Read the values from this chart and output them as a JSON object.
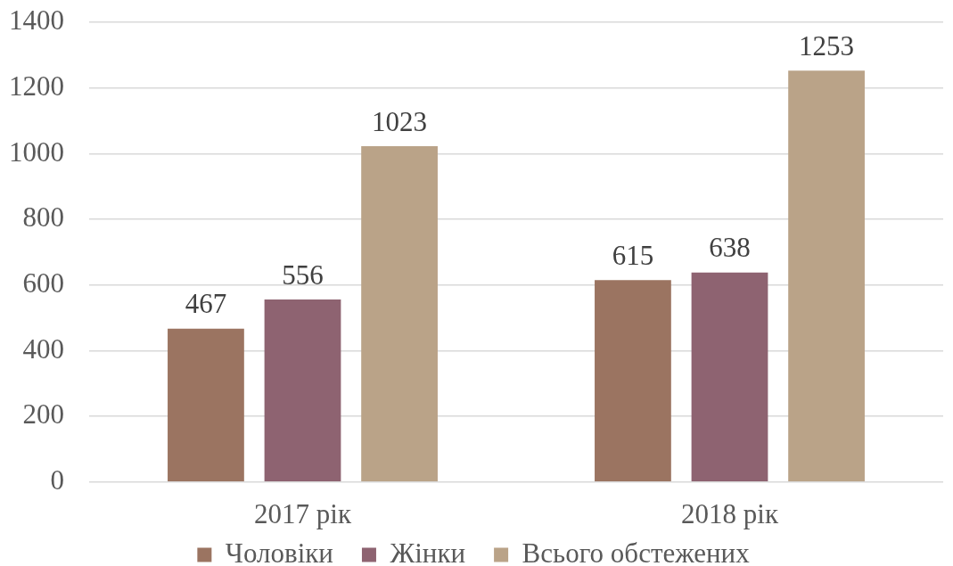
{
  "chart_data": {
    "type": "bar",
    "categories": [
      "2017 рік",
      "2018 рік"
    ],
    "series": [
      {
        "name": "Чоловіки",
        "color": "#9b7461",
        "values": [
          467,
          615
        ]
      },
      {
        "name": "Жінки",
        "color": "#8e6371",
        "values": [
          556,
          638
        ]
      },
      {
        "name": "Всього обстежених",
        "color": "#baa388",
        "values": [
          1023,
          1253
        ]
      }
    ],
    "ylim": [
      0,
      1400
    ],
    "yticks": [
      0,
      200,
      400,
      600,
      800,
      1000,
      1200,
      1400
    ],
    "grid": "y",
    "legend": "bottom",
    "data_labels": true
  }
}
